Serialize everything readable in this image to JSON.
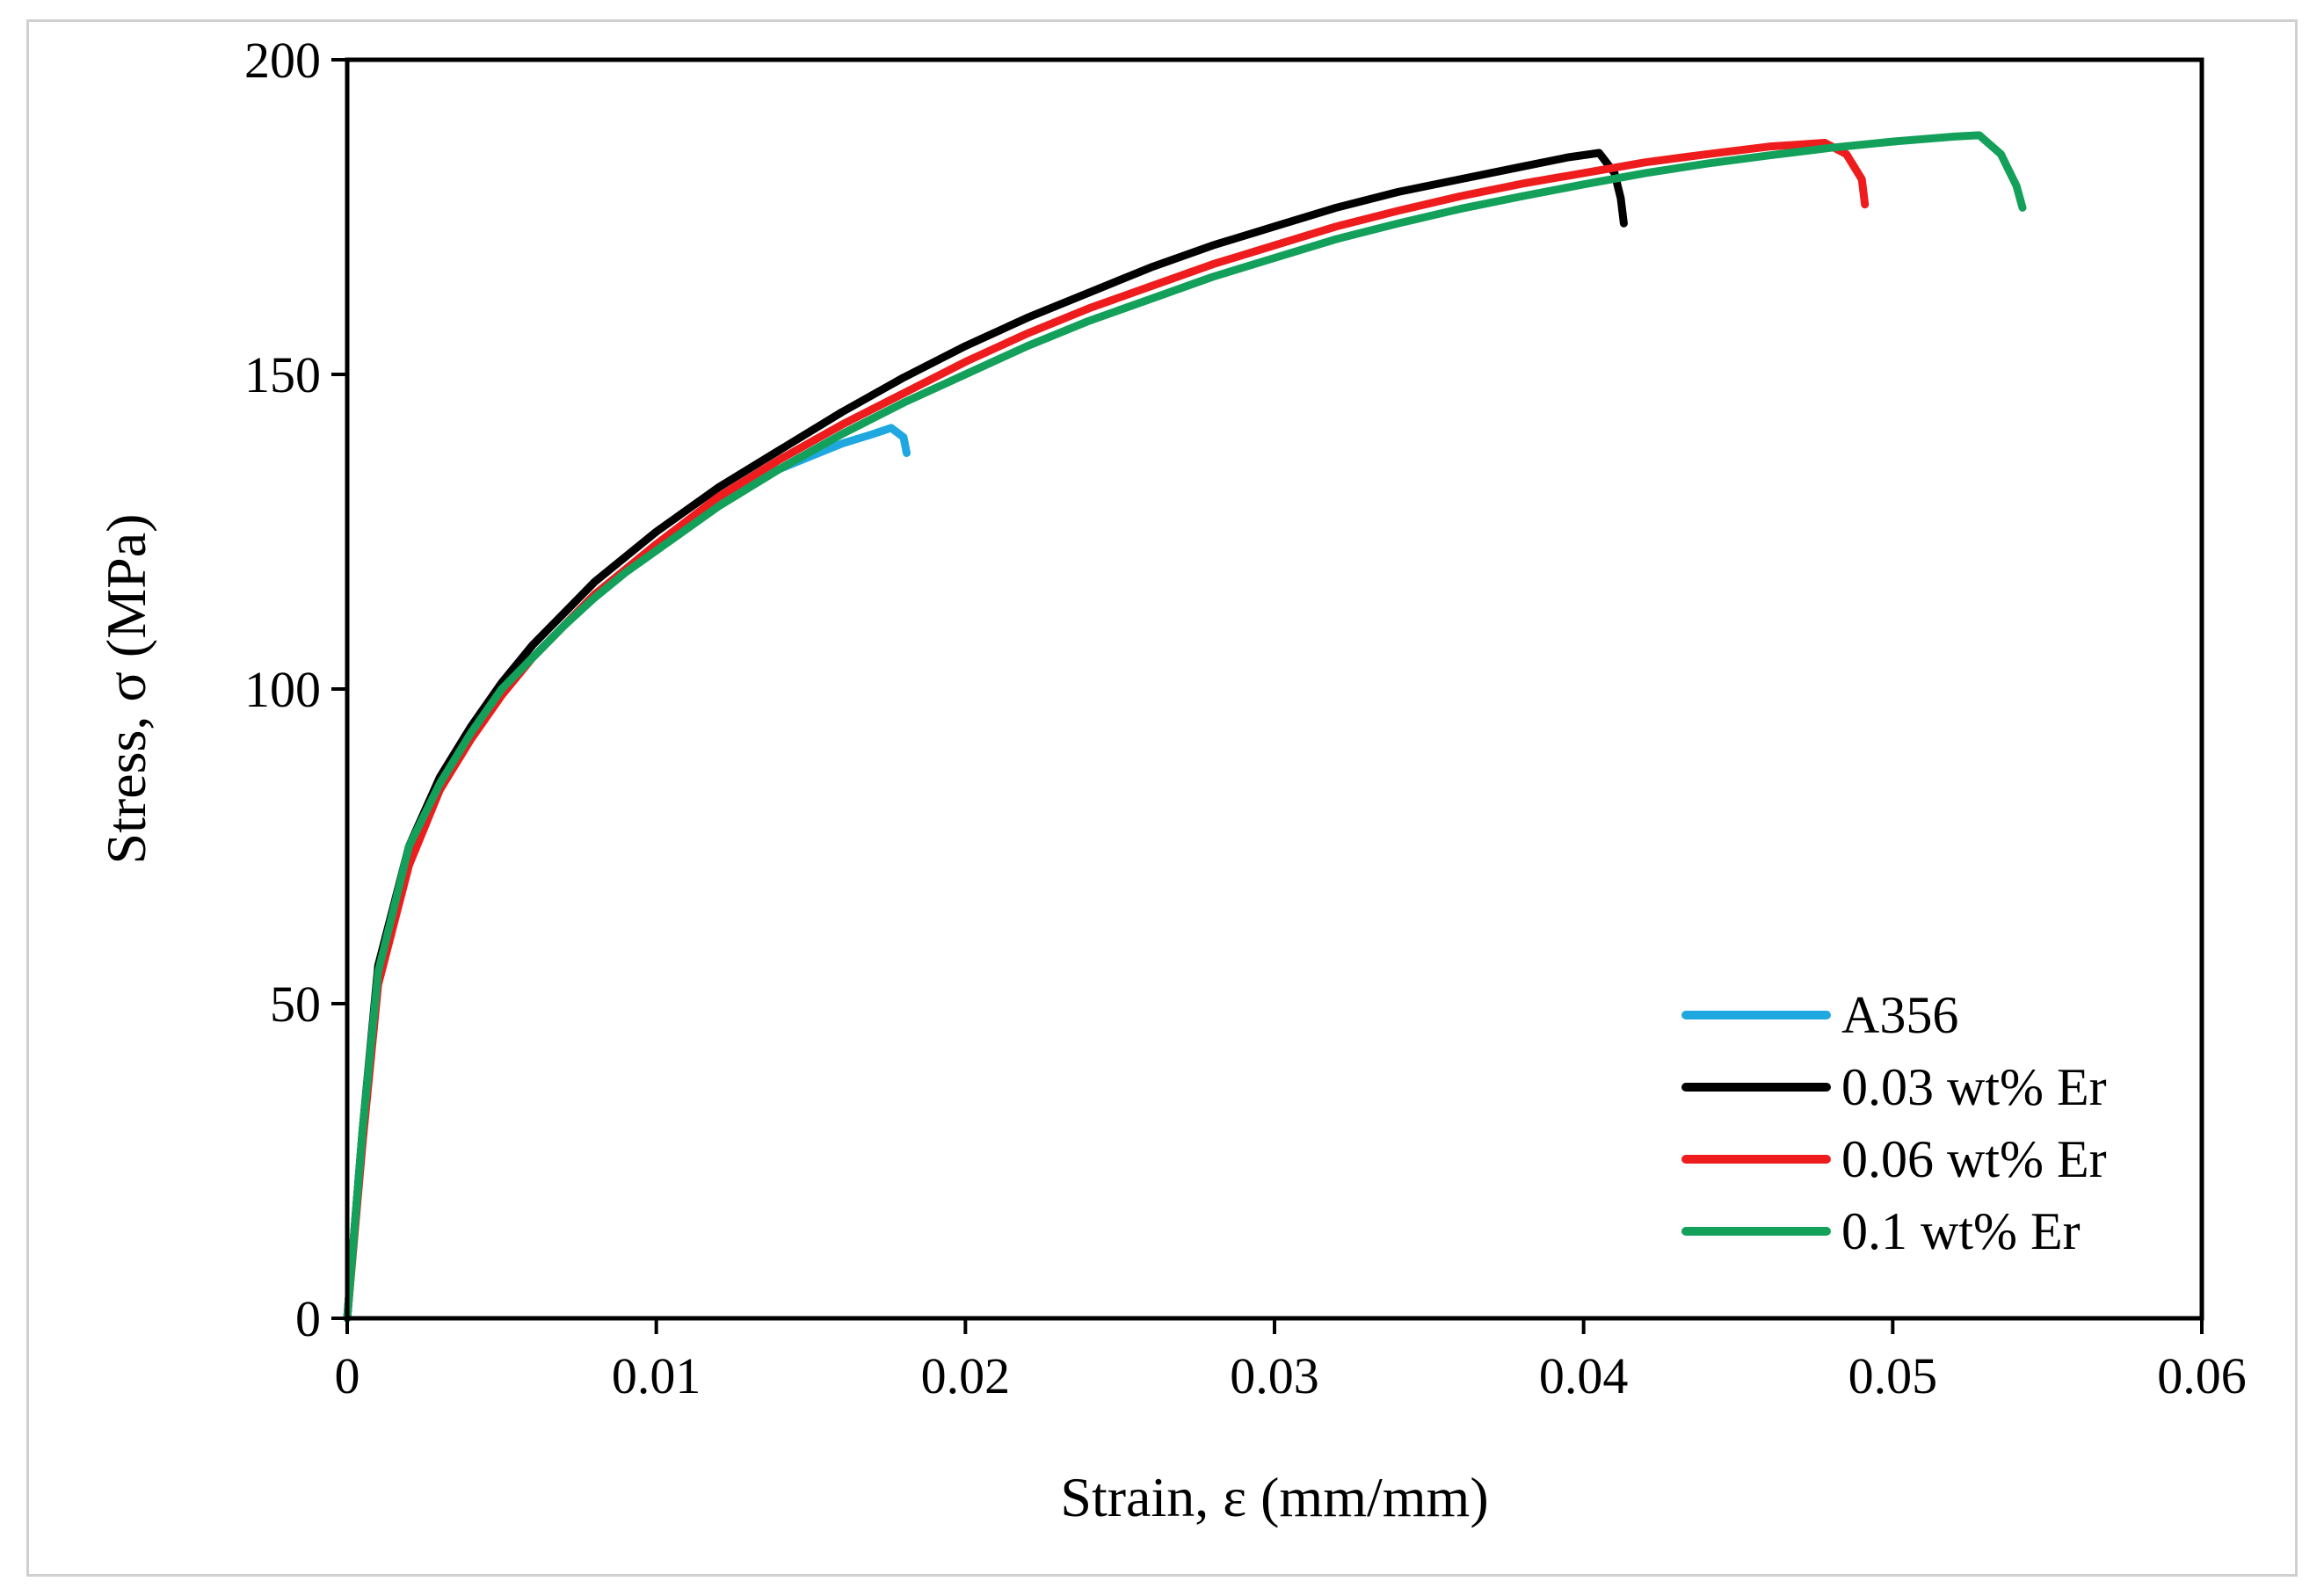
{
  "chart_data": {
    "type": "line",
    "title": "",
    "xlabel": "Strain, ε (mm/mm)",
    "ylabel": "Stress, σ (MPa)",
    "xlim": [
      0,
      0.06
    ],
    "ylim": [
      0,
      200
    ],
    "xticks": [
      0,
      0.01,
      0.02,
      0.03,
      0.04,
      0.05,
      0.06
    ],
    "xtick_labels": [
      "0",
      "0.01",
      "0.02",
      "0.03",
      "0.04",
      "0.05",
      "0.06"
    ],
    "yticks": [
      0,
      50,
      100,
      150,
      200
    ],
    "ytick_labels": [
      "0",
      "50",
      "100",
      "150",
      "200"
    ],
    "grid": false,
    "legend_position": "bottom-right",
    "series": [
      {
        "name": "A356",
        "color": "#1fa8e0",
        "points": [
          [
            0,
            0
          ],
          [
            0.0005,
            30
          ],
          [
            0.001,
            55
          ],
          [
            0.002,
            74
          ],
          [
            0.003,
            85
          ],
          [
            0.004,
            93
          ],
          [
            0.005,
            100
          ],
          [
            0.006,
            105
          ],
          [
            0.007,
            110
          ],
          [
            0.008,
            115
          ],
          [
            0.009,
            119
          ],
          [
            0.01,
            123
          ],
          [
            0.011,
            126.5
          ],
          [
            0.012,
            129.5
          ],
          [
            0.013,
            132.5
          ],
          [
            0.014,
            135
          ],
          [
            0.015,
            137
          ],
          [
            0.016,
            139
          ],
          [
            0.017,
            140.5
          ],
          [
            0.0176,
            141.5
          ],
          [
            0.018,
            140
          ],
          [
            0.0181,
            137.5
          ]
        ]
      },
      {
        "name": "0.03 wt% Er",
        "color": "#000000",
        "points": [
          [
            0,
            0
          ],
          [
            0.0005,
            30
          ],
          [
            0.001,
            56
          ],
          [
            0.002,
            75
          ],
          [
            0.003,
            86
          ],
          [
            0.004,
            94
          ],
          [
            0.005,
            101
          ],
          [
            0.006,
            107
          ],
          [
            0.007,
            112
          ],
          [
            0.008,
            117
          ],
          [
            0.009,
            121
          ],
          [
            0.01,
            125
          ],
          [
            0.012,
            132
          ],
          [
            0.014,
            138
          ],
          [
            0.016,
            144
          ],
          [
            0.018,
            149.5
          ],
          [
            0.02,
            154.5
          ],
          [
            0.022,
            159
          ],
          [
            0.024,
            163
          ],
          [
            0.026,
            167
          ],
          [
            0.028,
            170.5
          ],
          [
            0.03,
            173.5
          ],
          [
            0.032,
            176.5
          ],
          [
            0.034,
            179
          ],
          [
            0.036,
            181
          ],
          [
            0.038,
            183
          ],
          [
            0.0395,
            184.5
          ],
          [
            0.0405,
            185.2
          ],
          [
            0.041,
            182
          ],
          [
            0.0412,
            178
          ],
          [
            0.0413,
            174
          ]
        ]
      },
      {
        "name": "0.06 wt% Er",
        "color": "#ee1c1c",
        "points": [
          [
            0,
            0
          ],
          [
            0.0005,
            28
          ],
          [
            0.001,
            53
          ],
          [
            0.002,
            72
          ],
          [
            0.003,
            84
          ],
          [
            0.004,
            92
          ],
          [
            0.005,
            99
          ],
          [
            0.006,
            105
          ],
          [
            0.007,
            110
          ],
          [
            0.008,
            115
          ],
          [
            0.009,
            119
          ],
          [
            0.01,
            123
          ],
          [
            0.012,
            130.5
          ],
          [
            0.014,
            136.5
          ],
          [
            0.016,
            142
          ],
          [
            0.018,
            147
          ],
          [
            0.02,
            152
          ],
          [
            0.022,
            156.5
          ],
          [
            0.024,
            160.5
          ],
          [
            0.026,
            164
          ],
          [
            0.028,
            167.5
          ],
          [
            0.03,
            170.5
          ],
          [
            0.032,
            173.5
          ],
          [
            0.034,
            176
          ],
          [
            0.036,
            178.3
          ],
          [
            0.038,
            180.3
          ],
          [
            0.04,
            182
          ],
          [
            0.042,
            183.7
          ],
          [
            0.044,
            185
          ],
          [
            0.046,
            186.2
          ],
          [
            0.0478,
            186.8
          ],
          [
            0.0485,
            185
          ],
          [
            0.049,
            181
          ],
          [
            0.0491,
            177
          ]
        ]
      },
      {
        "name": "0.1 wt% Er",
        "color": "#13a05a",
        "points": [
          [
            0,
            0
          ],
          [
            0.0005,
            30
          ],
          [
            0.001,
            55
          ],
          [
            0.002,
            75
          ],
          [
            0.003,
            85
          ],
          [
            0.004,
            93
          ],
          [
            0.005,
            100
          ],
          [
            0.006,
            105
          ],
          [
            0.007,
            110
          ],
          [
            0.008,
            114.5
          ],
          [
            0.009,
            118.5
          ],
          [
            0.01,
            122
          ],
          [
            0.012,
            129
          ],
          [
            0.014,
            135
          ],
          [
            0.016,
            140.5
          ],
          [
            0.018,
            145.5
          ],
          [
            0.02,
            150
          ],
          [
            0.022,
            154.5
          ],
          [
            0.024,
            158.5
          ],
          [
            0.026,
            162
          ],
          [
            0.028,
            165.5
          ],
          [
            0.03,
            168.5
          ],
          [
            0.032,
            171.5
          ],
          [
            0.034,
            174
          ],
          [
            0.036,
            176.3
          ],
          [
            0.038,
            178.3
          ],
          [
            0.04,
            180.2
          ],
          [
            0.042,
            182
          ],
          [
            0.044,
            183.5
          ],
          [
            0.046,
            184.8
          ],
          [
            0.048,
            186
          ],
          [
            0.05,
            187
          ],
          [
            0.052,
            187.8
          ],
          [
            0.0528,
            188
          ],
          [
            0.0535,
            185
          ],
          [
            0.054,
            180
          ],
          [
            0.0542,
            176.5
          ]
        ]
      }
    ]
  }
}
